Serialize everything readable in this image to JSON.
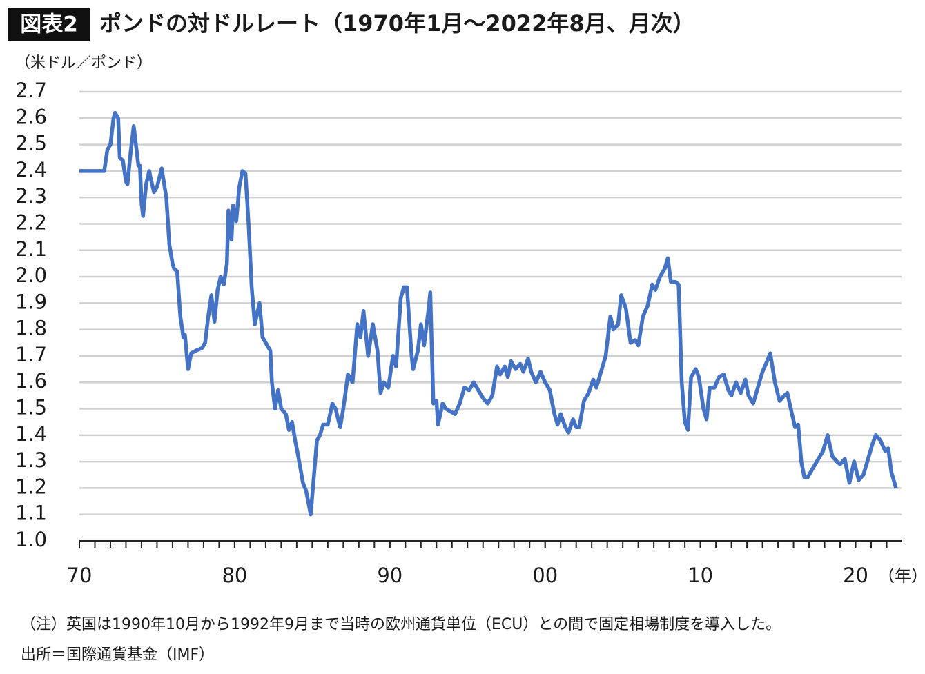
{
  "chart_data": {
    "type": "line",
    "badge": "図表2",
    "title": "ポンドの対ドルレート（1970年1月～2022年8月、月次）",
    "y_unit": "（米ドル／ポンド）",
    "x_unit": "（年）",
    "notes": [
      "（注）英国は1990年10月から1992年9月まで当時の欧州通貨単位（ECU）との間で固定相場制度を導入した。",
      "出所＝国際通貨基金（IMF）"
    ],
    "xlim": [
      1970,
      2022.6
    ],
    "xticks": [
      {
        "value": 1970,
        "label": "70"
      },
      {
        "value": 1980,
        "label": "80"
      },
      {
        "value": 1990,
        "label": "90"
      },
      {
        "value": 2000,
        "label": "00"
      },
      {
        "value": 2010,
        "label": "10"
      },
      {
        "value": 2020,
        "label": "20"
      }
    ],
    "ylim": [
      1.0,
      2.7
    ],
    "yticks": [
      {
        "value": 1,
        "label": "1.0"
      },
      1.1,
      1.2,
      1.3,
      1.4,
      1.5,
      1.6,
      1.7,
      1.8,
      1.9,
      {
        "value": 2,
        "label": "2.0"
      },
      2.1,
      2.2,
      2.3,
      2.4,
      2.5,
      2.6,
      2.7
    ],
    "grid": true,
    "series": [
      {
        "color": "#4472c4",
        "x": [
          1970.0,
          1971.6,
          1971.8,
          1972.0,
          1972.2,
          1972.3,
          1972.5,
          1972.6,
          1972.8,
          1973.0,
          1973.1,
          1973.3,
          1973.5,
          1973.6,
          1973.8,
          1973.9,
          1974.0,
          1974.1,
          1974.3,
          1974.5,
          1974.6,
          1974.8,
          1975.0,
          1975.3,
          1975.6,
          1975.8,
          1976.0,
          1976.1,
          1976.3,
          1976.5,
          1976.7,
          1976.8,
          1977.0,
          1977.2,
          1977.5,
          1977.9,
          1978.1,
          1978.3,
          1978.5,
          1978.7,
          1978.9,
          1979.1,
          1979.3,
          1979.5,
          1979.6,
          1979.8,
          1979.9,
          1980.1,
          1980.3,
          1980.5,
          1980.7,
          1980.9,
          1981.1,
          1981.3,
          1981.6,
          1981.8,
          1982.0,
          1982.3,
          1982.4,
          1982.6,
          1982.8,
          1983.0,
          1983.3,
          1983.5,
          1983.7,
          1983.9,
          1984.1,
          1984.4,
          1984.6,
          1984.9,
          1985.1,
          1985.3,
          1985.5,
          1985.7,
          1986.0,
          1986.3,
          1986.5,
          1986.8,
          1987.0,
          1987.3,
          1987.6,
          1987.9,
          1988.1,
          1988.3,
          1988.6,
          1988.9,
          1989.2,
          1989.4,
          1989.6,
          1989.9,
          1990.2,
          1990.4,
          1990.7,
          1990.9,
          1991.1,
          1991.4,
          1991.5,
          1991.8,
          1992.0,
          1992.2,
          1992.5,
          1992.6,
          1992.8,
          1993.0,
          1993.1,
          1993.4,
          1993.6,
          1993.9,
          1994.2,
          1994.5,
          1994.8,
          1995.1,
          1995.4,
          1995.7,
          1996.0,
          1996.3,
          1996.6,
          1996.9,
          1997.1,
          1997.4,
          1997.6,
          1997.8,
          1998.1,
          1998.4,
          1998.6,
          1998.9,
          1999.1,
          1999.4,
          1999.7,
          2000.0,
          2000.3,
          2000.6,
          2000.8,
          2001.0,
          2001.3,
          2001.5,
          2001.8,
          2002.0,
          2002.2,
          2002.5,
          2002.8,
          2003.1,
          2003.3,
          2003.6,
          2003.9,
          2004.2,
          2004.4,
          2004.7,
          2004.9,
          2005.2,
          2005.5,
          2005.8,
          2006.0,
          2006.3,
          2006.6,
          2006.9,
          2007.1,
          2007.4,
          2007.7,
          2007.9,
          2008.1,
          2008.4,
          2008.6,
          2008.8,
          2009.0,
          2009.2,
          2009.4,
          2009.7,
          2009.9,
          2010.2,
          2010.4,
          2010.6,
          2010.9,
          2011.2,
          2011.5,
          2011.8,
          2012.0,
          2012.3,
          2012.6,
          2012.9,
          2013.1,
          2013.4,
          2013.7,
          2014.0,
          2014.3,
          2014.5,
          2014.8,
          2015.1,
          2015.4,
          2015.6,
          2015.9,
          2016.1,
          2016.3,
          2016.5,
          2016.7,
          2016.9,
          2017.1,
          2017.4,
          2017.7,
          2017.9,
          2018.2,
          2018.5,
          2018.8,
          2019.0,
          2019.3,
          2019.6,
          2019.9,
          2020.2,
          2020.5,
          2020.8,
          2021.1,
          2021.3,
          2021.6,
          2021.9,
          2022.1,
          2022.3,
          2022.6
        ],
        "values": [
          2.4,
          2.4,
          2.48,
          2.5,
          2.6,
          2.62,
          2.6,
          2.45,
          2.44,
          2.36,
          2.35,
          2.47,
          2.57,
          2.52,
          2.42,
          2.42,
          2.28,
          2.23,
          2.35,
          2.4,
          2.37,
          2.32,
          2.34,
          2.41,
          2.3,
          2.12,
          2.05,
          2.03,
          2.02,
          1.85,
          1.77,
          1.78,
          1.65,
          1.71,
          1.72,
          1.73,
          1.75,
          1.85,
          1.93,
          1.83,
          1.95,
          2.0,
          1.97,
          2.05,
          2.25,
          2.14,
          2.27,
          2.21,
          2.34,
          2.4,
          2.39,
          2.2,
          1.96,
          1.82,
          1.9,
          1.77,
          1.75,
          1.72,
          1.6,
          1.5,
          1.57,
          1.5,
          1.48,
          1.42,
          1.45,
          1.38,
          1.32,
          1.22,
          1.19,
          1.1,
          1.24,
          1.38,
          1.4,
          1.44,
          1.44,
          1.52,
          1.5,
          1.43,
          1.5,
          1.63,
          1.6,
          1.82,
          1.77,
          1.87,
          1.7,
          1.82,
          1.72,
          1.56,
          1.6,
          1.58,
          1.7,
          1.66,
          1.92,
          1.96,
          1.96,
          1.7,
          1.65,
          1.72,
          1.82,
          1.74,
          1.88,
          1.94,
          1.52,
          1.53,
          1.44,
          1.52,
          1.5,
          1.49,
          1.48,
          1.52,
          1.58,
          1.57,
          1.6,
          1.57,
          1.54,
          1.52,
          1.55,
          1.66,
          1.63,
          1.66,
          1.62,
          1.68,
          1.65,
          1.67,
          1.64,
          1.69,
          1.64,
          1.6,
          1.64,
          1.6,
          1.57,
          1.48,
          1.44,
          1.48,
          1.43,
          1.41,
          1.46,
          1.43,
          1.43,
          1.53,
          1.56,
          1.61,
          1.58,
          1.64,
          1.7,
          1.85,
          1.8,
          1.82,
          1.93,
          1.88,
          1.75,
          1.76,
          1.74,
          1.85,
          1.89,
          1.97,
          1.95,
          2.0,
          2.03,
          2.07,
          1.98,
          1.98,
          1.97,
          1.6,
          1.45,
          1.42,
          1.62,
          1.65,
          1.62,
          1.5,
          1.46,
          1.58,
          1.58,
          1.62,
          1.63,
          1.57,
          1.55,
          1.6,
          1.56,
          1.61,
          1.55,
          1.52,
          1.58,
          1.64,
          1.68,
          1.71,
          1.6,
          1.53,
          1.55,
          1.56,
          1.48,
          1.43,
          1.44,
          1.3,
          1.24,
          1.24,
          1.26,
          1.29,
          1.32,
          1.34,
          1.4,
          1.32,
          1.3,
          1.29,
          1.31,
          1.22,
          1.3,
          1.23,
          1.25,
          1.31,
          1.37,
          1.4,
          1.38,
          1.34,
          1.35,
          1.26,
          1.2
        ]
      }
    ]
  }
}
